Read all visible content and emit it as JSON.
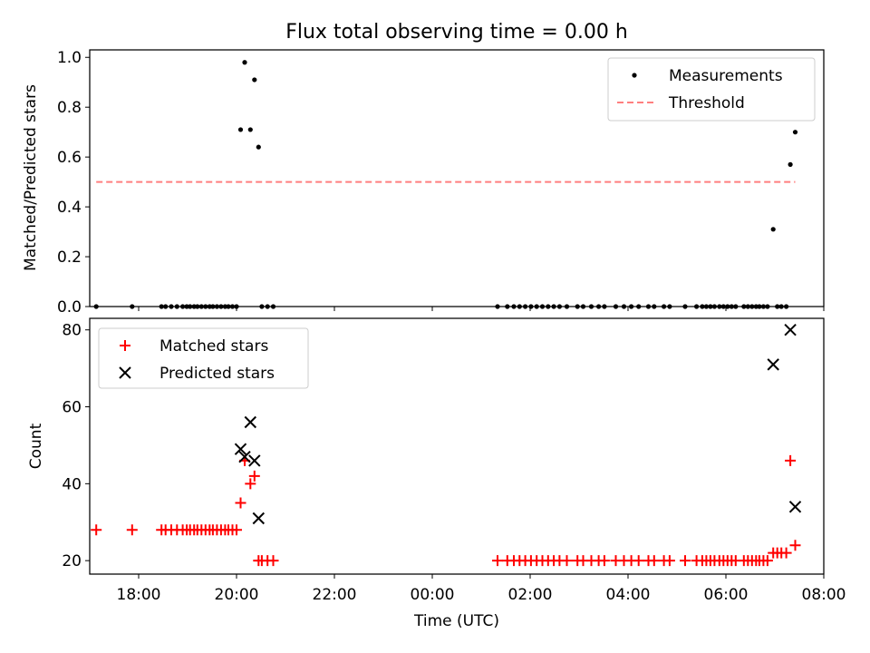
{
  "figure": {
    "title": "Flux total observing time = 0.00 h"
  },
  "chart_data": [
    {
      "type": "scatter",
      "title": "Flux total observing time = 0.00 h",
      "xlabel": "",
      "ylabel": "Matched/Predicted stars",
      "xlim": [
        "17:00",
        "08:00"
      ],
      "ylim": [
        0,
        1.03
      ],
      "yticks": [
        "0.0",
        "0.2",
        "0.4",
        "0.6",
        "0.8",
        "1.0"
      ],
      "legend_position": "upper right",
      "series": [
        {
          "name": "Measurements",
          "style": "dot",
          "color": "#000000",
          "points": [
            [
              "17:08",
              0
            ],
            [
              "17:52",
              0
            ],
            [
              "18:28",
              0
            ],
            [
              "18:33",
              0
            ],
            [
              "18:40",
              0
            ],
            [
              "18:47",
              0
            ],
            [
              "18:54",
              0
            ],
            [
              "18:59",
              0
            ],
            [
              "19:03",
              0
            ],
            [
              "19:08",
              0
            ],
            [
              "19:12",
              0
            ],
            [
              "19:17",
              0
            ],
            [
              "19:22",
              0
            ],
            [
              "19:27",
              0
            ],
            [
              "19:31",
              0
            ],
            [
              "19:36",
              0
            ],
            [
              "19:41",
              0
            ],
            [
              "19:46",
              0
            ],
            [
              "19:50",
              0
            ],
            [
              "19:55",
              0
            ],
            [
              "20:00",
              0
            ],
            [
              "20:05",
              0.71
            ],
            [
              "20:10",
              0.98
            ],
            [
              "20:17",
              0.71
            ],
            [
              "20:22",
              0.91
            ],
            [
              "20:27",
              0.64
            ],
            [
              "20:31",
              0
            ],
            [
              "20:38",
              0
            ],
            [
              "20:45",
              0
            ],
            [
              "01:20",
              0
            ],
            [
              "01:32",
              0
            ],
            [
              "01:40",
              0
            ],
            [
              "01:47",
              0
            ],
            [
              "01:54",
              0
            ],
            [
              "02:01",
              0
            ],
            [
              "02:08",
              0
            ],
            [
              "02:15",
              0
            ],
            [
              "02:22",
              0
            ],
            [
              "02:29",
              0
            ],
            [
              "02:36",
              0
            ],
            [
              "02:45",
              0
            ],
            [
              "02:58",
              0
            ],
            [
              "03:05",
              0
            ],
            [
              "03:15",
              0
            ],
            [
              "03:24",
              0
            ],
            [
              "03:31",
              0
            ],
            [
              "03:45",
              0
            ],
            [
              "03:55",
              0
            ],
            [
              "04:04",
              0
            ],
            [
              "04:13",
              0
            ],
            [
              "04:25",
              0
            ],
            [
              "04:32",
              0
            ],
            [
              "04:44",
              0
            ],
            [
              "04:51",
              0
            ],
            [
              "05:10",
              0
            ],
            [
              "05:24",
              0
            ],
            [
              "05:31",
              0
            ],
            [
              "05:36",
              0
            ],
            [
              "05:41",
              0
            ],
            [
              "05:46",
              0
            ],
            [
              "05:52",
              0
            ],
            [
              "05:57",
              0
            ],
            [
              "06:02",
              0
            ],
            [
              "06:07",
              0
            ],
            [
              "06:12",
              0
            ],
            [
              "06:22",
              0
            ],
            [
              "06:27",
              0
            ],
            [
              "06:32",
              0
            ],
            [
              "06:37",
              0
            ],
            [
              "06:41",
              0
            ],
            [
              "06:46",
              0
            ],
            [
              "06:51",
              0
            ],
            [
              "06:58",
              0.31
            ],
            [
              "07:03",
              0
            ],
            [
              "07:08",
              0
            ],
            [
              "07:14",
              0
            ],
            [
              "07:19",
              0.57
            ],
            [
              "07:25",
              0.7
            ]
          ]
        },
        {
          "name": "Threshold",
          "style": "dashed-line",
          "color": "#ff7f7f",
          "points": [
            [
              "17:08",
              0.5
            ],
            [
              "07:25",
              0.5
            ]
          ]
        }
      ]
    },
    {
      "type": "scatter",
      "title": "",
      "xlabel": "Time (UTC)",
      "ylabel": "Count",
      "xlim": [
        "17:00",
        "08:00"
      ],
      "ylim": [
        16.5,
        83
      ],
      "xticks": [
        "18:00",
        "20:00",
        "22:00",
        "00:00",
        "02:00",
        "04:00",
        "06:00",
        "08:00"
      ],
      "yticks": [
        "20",
        "40",
        "60",
        "80"
      ],
      "legend_position": "upper left",
      "series": [
        {
          "name": "Matched stars",
          "style": "plus",
          "color": "#ff0000",
          "points": [
            [
              "17:08",
              28
            ],
            [
              "17:52",
              28
            ],
            [
              "18:28",
              28
            ],
            [
              "18:33",
              28
            ],
            [
              "18:40",
              28
            ],
            [
              "18:47",
              28
            ],
            [
              "18:54",
              28
            ],
            [
              "18:59",
              28
            ],
            [
              "19:03",
              28
            ],
            [
              "19:08",
              28
            ],
            [
              "19:12",
              28
            ],
            [
              "19:17",
              28
            ],
            [
              "19:22",
              28
            ],
            [
              "19:27",
              28
            ],
            [
              "19:31",
              28
            ],
            [
              "19:36",
              28
            ],
            [
              "19:41",
              28
            ],
            [
              "19:46",
              28
            ],
            [
              "19:50",
              28
            ],
            [
              "19:55",
              28
            ],
            [
              "20:00",
              28
            ],
            [
              "20:05",
              35
            ],
            [
              "20:10",
              46
            ],
            [
              "20:17",
              40
            ],
            [
              "20:22",
              42
            ],
            [
              "20:27",
              20
            ],
            [
              "20:31",
              20
            ],
            [
              "20:38",
              20
            ],
            [
              "20:45",
              20
            ],
            [
              "01:20",
              20
            ],
            [
              "01:32",
              20
            ],
            [
              "01:40",
              20
            ],
            [
              "01:47",
              20
            ],
            [
              "01:54",
              20
            ],
            [
              "02:01",
              20
            ],
            [
              "02:08",
              20
            ],
            [
              "02:15",
              20
            ],
            [
              "02:22",
              20
            ],
            [
              "02:29",
              20
            ],
            [
              "02:36",
              20
            ],
            [
              "02:45",
              20
            ],
            [
              "02:58",
              20
            ],
            [
              "03:05",
              20
            ],
            [
              "03:15",
              20
            ],
            [
              "03:24",
              20
            ],
            [
              "03:31",
              20
            ],
            [
              "03:45",
              20
            ],
            [
              "03:55",
              20
            ],
            [
              "04:04",
              20
            ],
            [
              "04:13",
              20
            ],
            [
              "04:25",
              20
            ],
            [
              "04:32",
              20
            ],
            [
              "04:44",
              20
            ],
            [
              "04:51",
              20
            ],
            [
              "05:10",
              20
            ],
            [
              "05:24",
              20
            ],
            [
              "05:31",
              20
            ],
            [
              "05:36",
              20
            ],
            [
              "05:41",
              20
            ],
            [
              "05:46",
              20
            ],
            [
              "05:52",
              20
            ],
            [
              "05:57",
              20
            ],
            [
              "06:02",
              20
            ],
            [
              "06:07",
              20
            ],
            [
              "06:12",
              20
            ],
            [
              "06:22",
              20
            ],
            [
              "06:27",
              20
            ],
            [
              "06:32",
              20
            ],
            [
              "06:37",
              20
            ],
            [
              "06:41",
              20
            ],
            [
              "06:46",
              20
            ],
            [
              "06:51",
              20
            ],
            [
              "06:58",
              22
            ],
            [
              "07:03",
              22
            ],
            [
              "07:08",
              22
            ],
            [
              "07:14",
              22
            ],
            [
              "07:19",
              46
            ],
            [
              "07:25",
              24
            ]
          ]
        },
        {
          "name": "Predicted stars",
          "style": "x",
          "color": "#000000",
          "points": [
            [
              "20:05",
              49
            ],
            [
              "20:10",
              47
            ],
            [
              "20:17",
              56
            ],
            [
              "20:22",
              46
            ],
            [
              "20:27",
              31
            ],
            [
              "06:58",
              71
            ],
            [
              "07:19",
              80
            ],
            [
              "07:25",
              34
            ]
          ]
        }
      ]
    }
  ]
}
